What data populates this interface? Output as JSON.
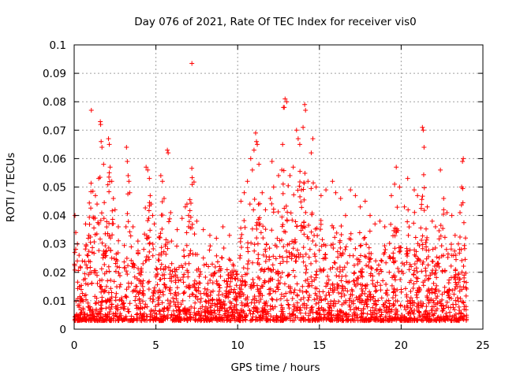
{
  "chart_data": {
    "type": "scatter",
    "title": "Day 076 of 2021, Rate Of TEC Index for receiver vis0",
    "xlabel": "GPS time / hours",
    "ylabel": "ROTI / TECUs",
    "xlim": [
      0,
      25
    ],
    "ylim": [
      0,
      0.1
    ],
    "x_ticks": [
      0,
      5,
      10,
      15,
      20,
      25
    ],
    "x_tick_labels": [
      "0",
      "5",
      "10",
      "15",
      "20",
      "25"
    ],
    "y_ticks": [
      0,
      0.01,
      0.02,
      0.03,
      0.04,
      0.05,
      0.06,
      0.07,
      0.08,
      0.09,
      0.1
    ],
    "y_tick_labels": [
      "0",
      "0.01",
      "0.02",
      "0.03",
      "0.04",
      "0.05",
      "0.06",
      "0.07",
      "0.08",
      "0.09",
      "0.1"
    ],
    "grid": true,
    "marker": "+",
    "color": "#ff0000",
    "series": [
      {
        "name": "ROTI",
        "points": [
          [
            0.05,
            0.04
          ],
          [
            0.1,
            0.034
          ],
          [
            0.2,
            0.03
          ],
          [
            0.3,
            0.026
          ],
          [
            0.5,
            0.024
          ],
          [
            0.7,
            0.037
          ],
          [
            0.9,
            0.033
          ],
          [
            1.05,
            0.077
          ],
          [
            1.2,
            0.039
          ],
          [
            1.3,
            0.047
          ],
          [
            1.4,
            0.044
          ],
          [
            1.5,
            0.053
          ],
          [
            1.6,
            0.073
          ],
          [
            1.62,
            0.072
          ],
          [
            1.65,
            0.066
          ],
          [
            1.7,
            0.064
          ],
          [
            1.8,
            0.058
          ],
          [
            2.1,
            0.067
          ],
          [
            2.15,
            0.065
          ],
          [
            2.2,
            0.057
          ],
          [
            2.3,
            0.052
          ],
          [
            2.4,
            0.046
          ],
          [
            2.5,
            0.042
          ],
          [
            2.7,
            0.036
          ],
          [
            3.2,
            0.064
          ],
          [
            3.25,
            0.059
          ],
          [
            3.3,
            0.054
          ],
          [
            3.35,
            0.052
          ],
          [
            3.4,
            0.048
          ],
          [
            3.6,
            0.036
          ],
          [
            3.9,
            0.031
          ],
          [
            4.4,
            0.057
          ],
          [
            4.5,
            0.056
          ],
          [
            4.6,
            0.053
          ],
          [
            4.65,
            0.047
          ],
          [
            4.7,
            0.044
          ],
          [
            4.8,
            0.04
          ],
          [
            4.9,
            0.037
          ],
          [
            5.3,
            0.054
          ],
          [
            5.4,
            0.052
          ],
          [
            5.5,
            0.046
          ],
          [
            5.7,
            0.063
          ],
          [
            5.75,
            0.062
          ],
          [
            5.9,
            0.041
          ],
          [
            6.3,
            0.035
          ],
          [
            6.6,
            0.039
          ],
          [
            6.8,
            0.043
          ],
          [
            6.9,
            0.044
          ],
          [
            7.0,
            0.04
          ],
          [
            7.2,
            0.0935
          ],
          [
            7.5,
            0.038
          ],
          [
            7.9,
            0.035
          ],
          [
            8.3,
            0.033
          ],
          [
            8.7,
            0.032
          ],
          [
            9.1,
            0.036
          ],
          [
            9.5,
            0.033
          ],
          [
            10.2,
            0.045
          ],
          [
            10.4,
            0.048
          ],
          [
            10.6,
            0.052
          ],
          [
            10.8,
            0.06
          ],
          [
            10.9,
            0.056
          ],
          [
            11.0,
            0.063
          ],
          [
            11.1,
            0.069
          ],
          [
            11.15,
            0.066
          ],
          [
            11.2,
            0.065
          ],
          [
            11.3,
            0.058
          ],
          [
            11.5,
            0.048
          ],
          [
            11.7,
            0.042
          ],
          [
            12.0,
            0.046
          ],
          [
            12.1,
            0.059
          ],
          [
            12.2,
            0.05
          ],
          [
            12.5,
            0.054
          ],
          [
            12.7,
            0.056
          ],
          [
            12.75,
            0.065
          ],
          [
            12.8,
            0.078
          ],
          [
            12.85,
            0.078
          ],
          [
            12.9,
            0.081
          ],
          [
            13.0,
            0.08
          ],
          [
            13.2,
            0.054
          ],
          [
            13.4,
            0.057
          ],
          [
            13.6,
            0.07
          ],
          [
            13.7,
            0.067
          ],
          [
            13.8,
            0.065
          ],
          [
            13.9,
            0.049
          ],
          [
            14.0,
            0.071
          ],
          [
            14.1,
            0.079
          ],
          [
            14.15,
            0.077
          ],
          [
            14.3,
            0.052
          ],
          [
            14.5,
            0.062
          ],
          [
            14.6,
            0.067
          ],
          [
            14.8,
            0.05
          ],
          [
            15.1,
            0.047
          ],
          [
            15.4,
            0.049
          ],
          [
            15.8,
            0.052
          ],
          [
            16.0,
            0.048
          ],
          [
            16.3,
            0.046
          ],
          [
            16.6,
            0.04
          ],
          [
            16.9,
            0.049
          ],
          [
            17.2,
            0.047
          ],
          [
            17.5,
            0.043
          ],
          [
            17.8,
            0.045
          ],
          [
            18.1,
            0.04
          ],
          [
            18.4,
            0.037
          ],
          [
            18.7,
            0.038
          ],
          [
            19.0,
            0.036
          ],
          [
            19.4,
            0.047
          ],
          [
            19.6,
            0.051
          ],
          [
            19.7,
            0.057
          ],
          [
            19.9,
            0.05
          ],
          [
            20.2,
            0.043
          ],
          [
            20.4,
            0.053
          ],
          [
            20.8,
            0.049
          ],
          [
            21.0,
            0.047
          ],
          [
            21.3,
            0.071
          ],
          [
            21.35,
            0.07
          ],
          [
            21.4,
            0.064
          ],
          [
            21.6,
            0.043
          ],
          [
            21.9,
            0.038
          ],
          [
            22.1,
            0.036
          ],
          [
            22.4,
            0.056
          ],
          [
            22.6,
            0.046
          ],
          [
            22.8,
            0.041
          ],
          [
            23.1,
            0.04
          ],
          [
            23.3,
            0.033
          ],
          [
            23.5,
            0.03
          ],
          [
            23.6,
            0.041
          ],
          [
            23.7,
            0.05
          ],
          [
            23.75,
            0.059
          ],
          [
            23.8,
            0.06
          ]
        ]
      }
    ]
  }
}
